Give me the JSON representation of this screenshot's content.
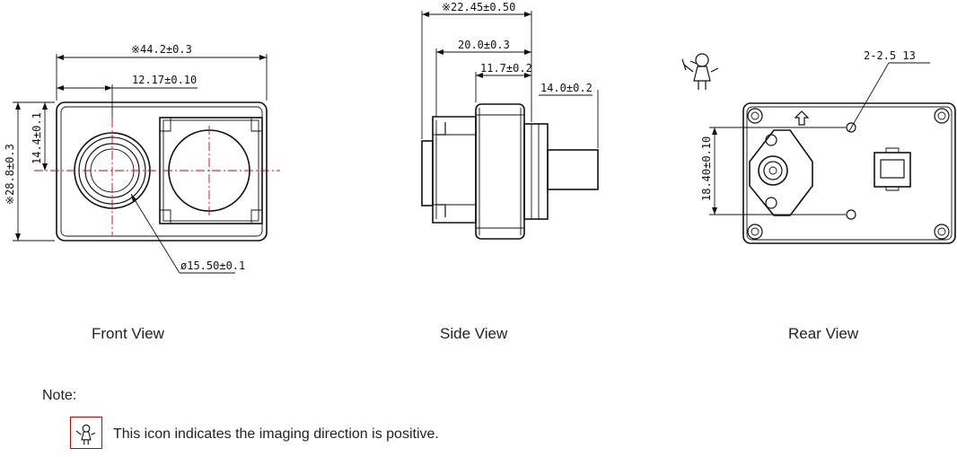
{
  "front_view": {
    "caption": "Front  View",
    "dim_width": "※44.2±0.3",
    "dim_lens_offset": "12.17±0.10",
    "dim_height": "※28.8±0.3",
    "dim_lens_height": "14.4±0.1",
    "dim_lens_diameter": "ø15.50±0.1"
  },
  "side_view": {
    "caption": "Side  View",
    "dim_total": "※22.45±0.50",
    "dim_body": "20.0±0.3",
    "dim_lens_holder": "11.7±0.2",
    "dim_lens_diameter": "14.0±0.2"
  },
  "rear_view": {
    "caption": "Rear  View",
    "dim_holes": "2-2.5 13",
    "dim_hole_spacing": "18.40±0.10"
  },
  "note": {
    "label": "Note:",
    "text": "This icon indicates the imaging direction is positive.",
    "icon": "person-icon"
  },
  "colors": {
    "centerline": "#d40000",
    "icon_border": "#d40000",
    "line": "#111111"
  }
}
